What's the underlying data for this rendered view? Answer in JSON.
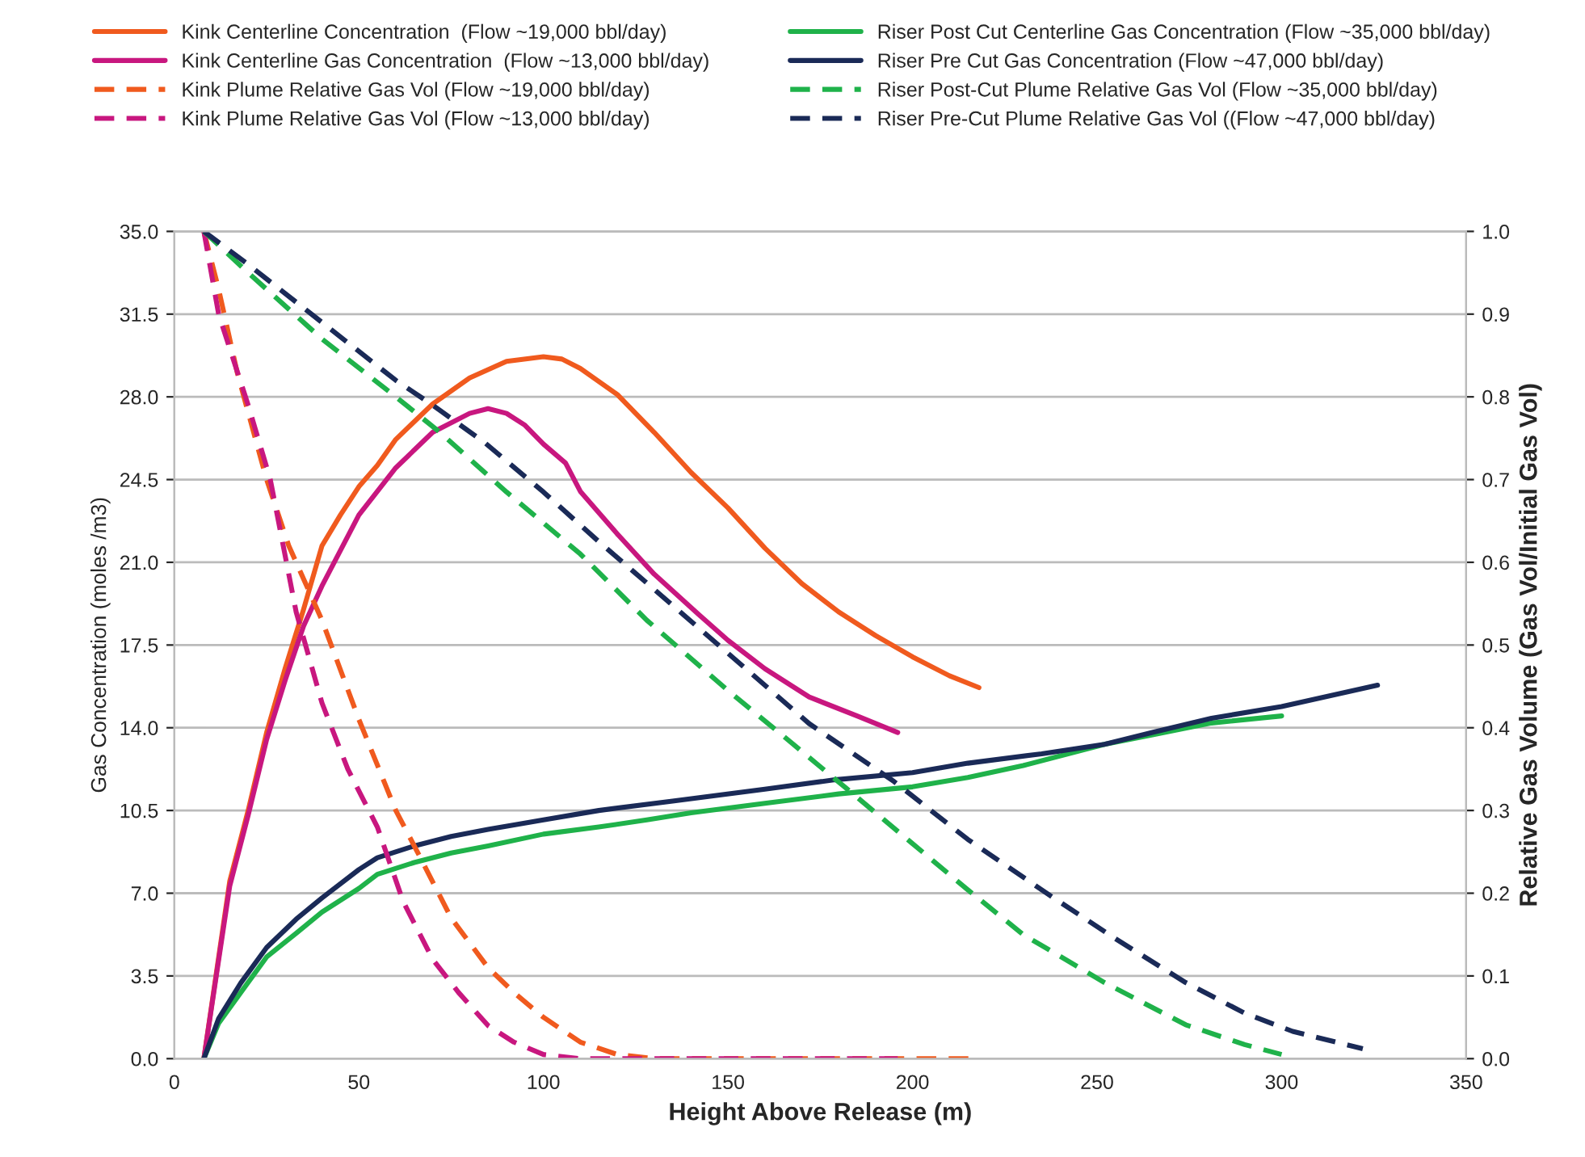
{
  "chart_data": {
    "type": "line",
    "xlabel": "Height Above Release (m)",
    "ylabel": "Gas Concentration (moles /m3)",
    "y2label": "Relative Gas Volume (Gas Vol/Initial Gas Vol)",
    "xlim": [
      0,
      350
    ],
    "xticks": [
      0,
      50,
      100,
      150,
      200,
      250,
      300,
      350
    ],
    "ylim": [
      0,
      35
    ],
    "yticks": [
      {
        "value": 0,
        "label": "0.0"
      },
      3.5,
      {
        "value": 7,
        "label": "7.0"
      },
      10.5,
      {
        "value": 14,
        "label": "14.0"
      },
      17.5,
      {
        "value": 21,
        "label": "21.0"
      },
      24.5,
      {
        "value": 28,
        "label": "28.0"
      },
      31.5,
      {
        "value": 35,
        "label": "35.0"
      }
    ],
    "y2lim": [
      0,
      1
    ],
    "y2ticks": [
      {
        "value": 0,
        "label": "0.0"
      },
      0.1,
      0.2,
      0.3,
      0.4,
      0.5,
      0.6,
      0.7,
      0.8,
      0.9,
      {
        "value": 1,
        "label": "1.0"
      }
    ],
    "grid": "y",
    "legend": "top",
    "marker": "none",
    "series": [
      {
        "name": "Kink Centerline Concentration  (Flow ~19,000 bbl/day)",
        "color": "#f05a1e",
        "line_style": "solid",
        "x": [
          8,
          15,
          20,
          25,
          30,
          35,
          40,
          45,
          50,
          55,
          60,
          70,
          80,
          90,
          100,
          105,
          110,
          120,
          130,
          140,
          150,
          160,
          170,
          180,
          190,
          200,
          210,
          218
        ],
        "values": [
          0,
          7.5,
          10.5,
          13.8,
          16.5,
          19,
          21.7,
          23,
          24.2,
          25.1,
          26.2,
          27.7,
          28.8,
          29.5,
          29.7,
          29.6,
          29.2,
          28.1,
          26.5,
          24.8,
          23.3,
          21.6,
          20.1,
          18.9,
          17.9,
          17,
          16.2,
          15.7
        ]
      },
      {
        "name": "Kink Centerline Gas Concentration  (Flow ~13,000 bbl/day)",
        "color": "#c8177f",
        "line_style": "solid",
        "x": [
          8,
          15,
          20,
          25,
          30,
          35,
          40,
          50,
          60,
          70,
          80,
          85,
          90,
          95,
          100,
          106,
          110,
          120,
          130,
          142,
          150,
          160,
          172,
          185,
          196
        ],
        "values": [
          0,
          7.3,
          10.3,
          13.5,
          16,
          18.3,
          20,
          23,
          25,
          26.5,
          27.3,
          27.5,
          27.3,
          26.8,
          26,
          25.2,
          24,
          22.2,
          20.5,
          18.8,
          17.7,
          16.5,
          15.3,
          14.5,
          13.8
        ]
      },
      {
        "name": "Kink Plume Relative Gas Vol (Flow ~19,000 bbl/day)",
        "color": "#f05a1e",
        "line_style": "dashed",
        "axis": "y2",
        "x": [
          8,
          12,
          17,
          25,
          31,
          40,
          50,
          60,
          67,
          75,
          85,
          92,
          100,
          110,
          120,
          130,
          150,
          175,
          200,
          218
        ],
        "values": [
          1,
          0.93,
          0.83,
          0.7,
          0.62,
          0.53,
          0.41,
          0.3,
          0.24,
          0.17,
          0.11,
          0.08,
          0.05,
          0.02,
          0.005,
          0,
          0,
          0,
          0,
          0
        ]
      },
      {
        "name": "Kink Plume Relative Gas Vol (Flow ~13,000 bbl/day)",
        "color": "#c8177f",
        "line_style": "dashed",
        "axis": "y2",
        "x": [
          8,
          12,
          20,
          26,
          33,
          40,
          47,
          55,
          62,
          70,
          77,
          85,
          92,
          100,
          110,
          150,
          196
        ],
        "values": [
          1,
          0.9,
          0.79,
          0.7,
          0.54,
          0.43,
          0.35,
          0.28,
          0.19,
          0.12,
          0.08,
          0.04,
          0.02,
          0.005,
          0,
          0,
          0
        ]
      },
      {
        "name": "Riser Post Cut Centerline Gas Concentration (Flow ~35,000 bbl/day)",
        "color": "#1fb24a",
        "line_style": "solid",
        "x": [
          8,
          12,
          18,
          25,
          33,
          40,
          50,
          55,
          65,
          75,
          85,
          100,
          115,
          128,
          140,
          160,
          180,
          200,
          215,
          230,
          252,
          265,
          281,
          300
        ],
        "values": [
          0,
          1.5,
          2.8,
          4.3,
          5.3,
          6.2,
          7.2,
          7.8,
          8.3,
          8.7,
          9,
          9.5,
          9.8,
          10.1,
          10.4,
          10.8,
          11.2,
          11.5,
          11.9,
          12.4,
          13.3,
          13.7,
          14.2,
          14.5
        ]
      },
      {
        "name": "Riser Pre Cut Gas Concentration (Flow ~47,000 bbl/day)",
        "color": "#1a2a57",
        "line_style": "solid",
        "x": [
          8,
          12,
          18,
          25,
          33,
          40,
          50,
          55,
          65,
          75,
          85,
          100,
          115,
          135,
          160,
          179,
          200,
          215,
          235,
          252,
          265,
          281,
          300,
          326
        ],
        "values": [
          0,
          1.7,
          3.2,
          4.7,
          5.9,
          6.8,
          8,
          8.5,
          9,
          9.4,
          9.7,
          10.1,
          10.5,
          10.9,
          11.4,
          11.8,
          12.1,
          12.5,
          12.9,
          13.3,
          13.8,
          14.4,
          14.9,
          15.8
        ]
      },
      {
        "name": "Riser Post-Cut Plume Relative Gas Vol (Flow ~35,000 bbl/day)",
        "color": "#1fb24a",
        "line_style": "dashed",
        "axis": "y2",
        "x": [
          8,
          20,
          40,
          60,
          72,
          90,
          110,
          128,
          150,
          165,
          182,
          200,
          215,
          230,
          252,
          274,
          290,
          300
        ],
        "values": [
          1,
          0.95,
          0.87,
          0.8,
          0.757,
          0.685,
          0.61,
          0.53,
          0.445,
          0.39,
          0.327,
          0.26,
          0.204,
          0.15,
          0.092,
          0.041,
          0.017,
          0.005
        ]
      },
      {
        "name": "Riser Pre-Cut Plume Relative Gas Vol ((Flow ~47,000 bbl/day)",
        "color": "#1a2a57",
        "line_style": "dashed",
        "axis": "y2",
        "x": [
          8,
          20,
          40,
          60,
          70,
          84,
          100,
          115,
          128,
          150,
          172,
          195,
          215,
          237,
          255,
          274,
          290,
          303,
          322
        ],
        "values": [
          1,
          0.96,
          0.89,
          0.82,
          0.79,
          0.745,
          0.685,
          0.625,
          0.575,
          0.49,
          0.405,
          0.335,
          0.265,
          0.198,
          0.145,
          0.092,
          0.055,
          0.033,
          0.012
        ]
      }
    ]
  }
}
